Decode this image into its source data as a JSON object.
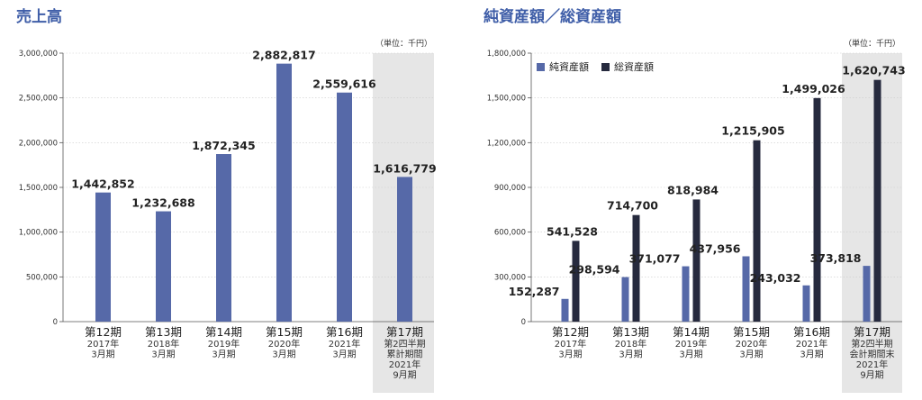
{
  "chart_data": [
    {
      "type": "bar",
      "title": "売上高",
      "unit_label": "（単位：千円）",
      "ylim": [
        0,
        3000000
      ],
      "yticks": [
        "0",
        "500,000",
        "1,000,000",
        "1,500,000",
        "2,000,000",
        "2,500,000",
        "3,000,000"
      ],
      "ytick_values": [
        0,
        500000,
        1000000,
        1500000,
        2000000,
        2500000,
        3000000
      ],
      "categories": [
        {
          "label": "第12期",
          "sub": [
            "2017年",
            "3月期"
          ]
        },
        {
          "label": "第13期",
          "sub": [
            "2018年",
            "3月期"
          ]
        },
        {
          "label": "第14期",
          "sub": [
            "2019年",
            "3月期"
          ]
        },
        {
          "label": "第15期",
          "sub": [
            "2020年",
            "3月期"
          ]
        },
        {
          "label": "第16期",
          "sub": [
            "2021年",
            "3月期"
          ]
        },
        {
          "label": "第17期",
          "sub": [
            "第2四半期",
            "累計期間",
            "2021年",
            "9月期"
          ]
        }
      ],
      "series": [
        {
          "color": "#5669a8",
          "values": [
            1442852,
            1232688,
            1872345,
            2882817,
            2559616,
            1616779
          ],
          "labels": [
            "1,442,852",
            "1,232,688",
            "1,872,345",
            "2,882,817",
            "2,559,616",
            "1,616,779"
          ]
        }
      ],
      "highlight_last": true,
      "grid": true,
      "legend": null
    },
    {
      "type": "bar",
      "title": "純資産額／総資産額",
      "unit_label": "（単位：千円）",
      "ylim": [
        0,
        1800000
      ],
      "yticks": [
        "0",
        "300,000",
        "600,000",
        "900,000",
        "1,200,000",
        "1,500,000",
        "1,800,000"
      ],
      "ytick_values": [
        0,
        300000,
        600000,
        900000,
        1200000,
        1500000,
        1800000
      ],
      "categories": [
        {
          "label": "第12期",
          "sub": [
            "2017年",
            "3月期"
          ]
        },
        {
          "label": "第13期",
          "sub": [
            "2018年",
            "3月期"
          ]
        },
        {
          "label": "第14期",
          "sub": [
            "2019年",
            "3月期"
          ]
        },
        {
          "label": "第15期",
          "sub": [
            "2020年",
            "3月期"
          ]
        },
        {
          "label": "第16期",
          "sub": [
            "2021年",
            "3月期"
          ]
        },
        {
          "label": "第17期",
          "sub": [
            "第2四半期",
            "会計期間末",
            "2021年",
            "9月期"
          ]
        }
      ],
      "series": [
        {
          "name": "純資産額",
          "color": "#5669a8",
          "values": [
            152287,
            298594,
            371077,
            437956,
            243032,
            373818
          ],
          "labels": [
            "152,287",
            "298,594",
            "371,077",
            "437,956",
            "243,032",
            "373,818"
          ]
        },
        {
          "name": "総資産額",
          "color": "#262a3e",
          "values": [
            541528,
            714700,
            818984,
            1215905,
            1499026,
            1620743
          ],
          "labels": [
            "541,528",
            "714,700",
            "818,984",
            "1,215,905",
            "1,499,026",
            "1,620,743"
          ]
        }
      ],
      "highlight_last": true,
      "grid": true,
      "legend": "top-left"
    }
  ],
  "colors": {
    "title": "#3f5ea8",
    "highlight_bg": "#e6e6e6",
    "grid": "#cccccc",
    "axis": "#555555"
  }
}
